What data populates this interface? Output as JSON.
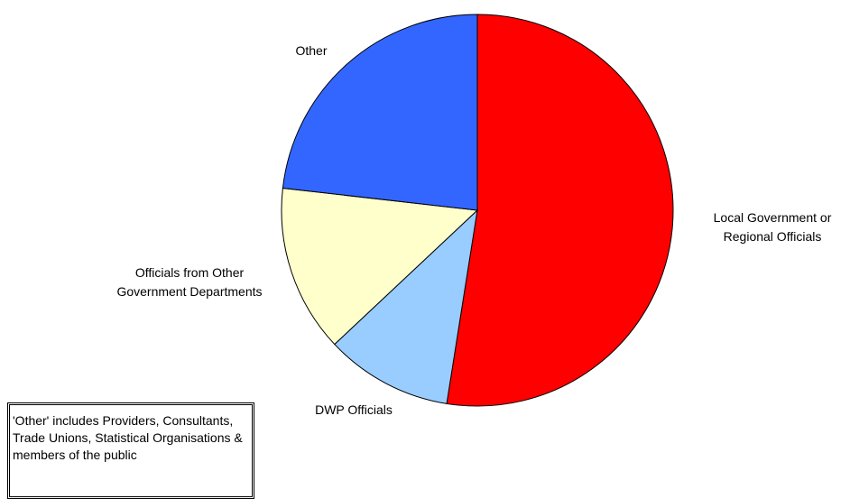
{
  "chart_data": {
    "type": "pie",
    "title": "",
    "slices": [
      {
        "label": "Local Government or Regional Officials",
        "value": 52.5,
        "color": "#ff0000"
      },
      {
        "label": "DWP Officials",
        "value": 10.5,
        "color": "#99ccff"
      },
      {
        "label": "Officials from Other Government Departments",
        "value": 13.8,
        "color": "#ffffcc"
      },
      {
        "label": "Other",
        "value": 23.2,
        "color": "#3366ff"
      }
    ],
    "start_angle_deg": 0,
    "direction": "clockwise",
    "label_lines": [
      [
        "Local Government or",
        "Regional Officials"
      ],
      [
        "DWP Officials"
      ],
      [
        "Officials from Other",
        "Government Departments"
      ],
      [
        "Other"
      ]
    ]
  },
  "note": {
    "text": "'Other' includes Providers, Consultants, Trade Unions, Statistical Organisations & members of the public"
  }
}
